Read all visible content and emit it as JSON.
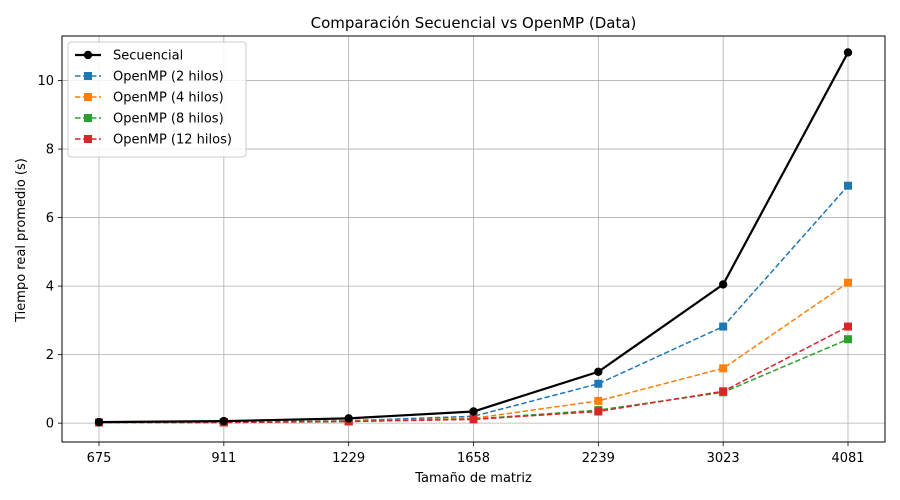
{
  "chart_data": {
    "type": "line",
    "title": "Comparación Secuencial vs OpenMP (Data)",
    "xlabel": "Tamaño de matriz",
    "ylabel": "Tiempo real promedio (s)",
    "categories": [
      "675",
      "911",
      "1229",
      "1658",
      "2239",
      "3023",
      "4081"
    ],
    "ylim": [
      -0.55,
      11.3
    ],
    "yticks": [
      0,
      2,
      4,
      6,
      8,
      10
    ],
    "grid": true,
    "legend_position": "top-left",
    "series": [
      {
        "name": "Secuencial",
        "color": "#000000",
        "style": "solid",
        "marker": "circle",
        "values": [
          0.03,
          0.06,
          0.14,
          0.34,
          1.5,
          4.05,
          10.82
        ]
      },
      {
        "name": "OpenMP (2 hilos)",
        "color": "#1f77b4",
        "style": "dashed",
        "marker": "square",
        "values": [
          0.02,
          0.03,
          0.07,
          0.2,
          1.15,
          2.82,
          6.93
        ]
      },
      {
        "name": "OpenMP (4 hilos)",
        "color": "#ff7f0e",
        "style": "dashed",
        "marker": "square",
        "values": [
          0.02,
          0.03,
          0.06,
          0.14,
          0.65,
          1.6,
          4.1
        ]
      },
      {
        "name": "OpenMP (8 hilos)",
        "color": "#2ca02c",
        "style": "dashed",
        "marker": "square",
        "values": [
          0.02,
          0.02,
          0.05,
          0.12,
          0.38,
          0.9,
          2.45
        ]
      },
      {
        "name": "OpenMP (12 hilos)",
        "color": "#d62728",
        "style": "dashed",
        "marker": "square",
        "values": [
          0.02,
          0.02,
          0.05,
          0.11,
          0.34,
          0.93,
          2.82
        ]
      }
    ]
  }
}
